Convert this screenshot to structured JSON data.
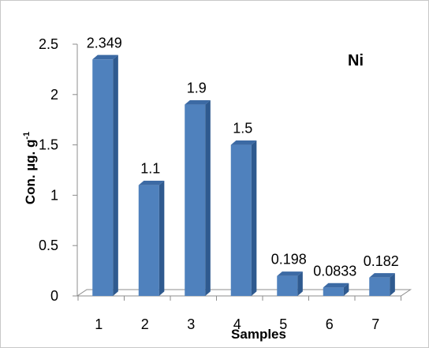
{
  "chart_data": {
    "type": "bar",
    "title": "Ni",
    "xlabel": "Samples",
    "ylabel": "Con. µg. g",
    "ylabel_superscript": "-1",
    "categories": [
      "1",
      "2",
      "3",
      "4",
      "5",
      "6",
      "7"
    ],
    "values": [
      2.349,
      1.1,
      1.9,
      1.5,
      0.198,
      0.0833,
      0.182
    ],
    "data_labels": [
      "2.349",
      "1.1",
      "1.9",
      "1.5",
      "0.198",
      "0.0833",
      "0.182"
    ],
    "ylim": [
      0,
      2.5
    ],
    "yticks": [
      "0",
      "0.5",
      "1",
      "1.5",
      "2",
      "2.5"
    ],
    "ytick_values": [
      0,
      0.5,
      1,
      1.5,
      2,
      2.5
    ],
    "grid": false,
    "legend": "none",
    "bar_color": "#4f81bd"
  }
}
